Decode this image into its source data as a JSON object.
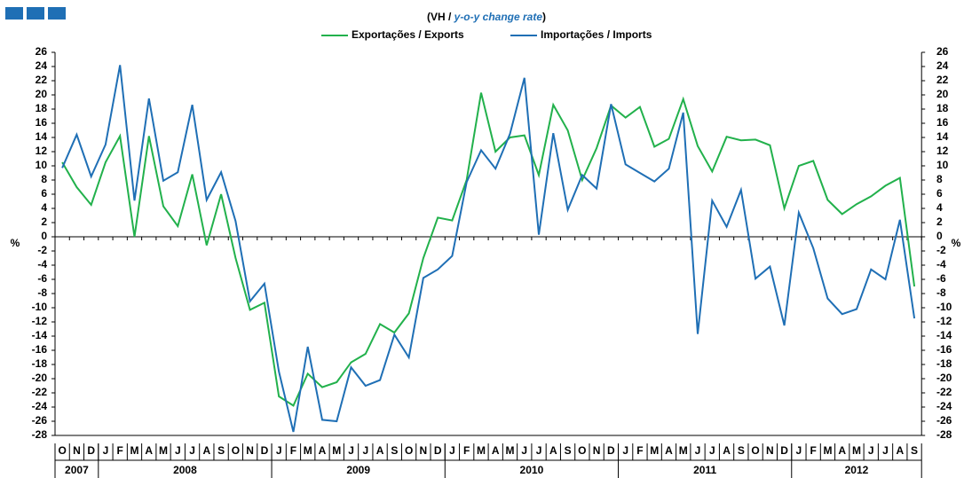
{
  "chart_data": {
    "type": "line",
    "subtitle_parts": [
      "(VH / ",
      "y-o-y change rate",
      ")"
    ],
    "y_label": "%",
    "categories": [
      "O",
      "N",
      "D",
      "J",
      "F",
      "M",
      "A",
      "M",
      "J",
      "J",
      "A",
      "S",
      "O",
      "N",
      "D",
      "J",
      "F",
      "M",
      "A",
      "M",
      "J",
      "J",
      "A",
      "S",
      "O",
      "N",
      "D",
      "J",
      "F",
      "M",
      "A",
      "M",
      "J",
      "J",
      "A",
      "S",
      "O",
      "N",
      "D",
      "J",
      "F",
      "M",
      "A",
      "M",
      "J",
      "J",
      "A",
      "S",
      "O",
      "N",
      "D",
      "J",
      "F",
      "M",
      "A",
      "M",
      "J",
      "J",
      "A",
      "S"
    ],
    "x_groups": [
      {
        "label": "2007",
        "count": 3
      },
      {
        "label": "2008",
        "count": 12
      },
      {
        "label": "2009",
        "count": 12
      },
      {
        "label": "2010",
        "count": 12
      },
      {
        "label": "2011",
        "count": 12
      },
      {
        "label": "2012",
        "count": 9
      }
    ],
    "series": [
      {
        "name": "Exportações / Exports",
        "color": "#22b14c",
        "values": [
          10.5,
          7,
          4.5,
          10.5,
          14.2,
          0,
          14.2,
          4.3,
          1.5,
          8.8,
          -1.2,
          6,
          -3,
          -10.3,
          -9.3,
          -22.5,
          -23.8,
          -19.3,
          -21.2,
          -20.5,
          -17.7,
          -16.5,
          -12.3,
          -13.5,
          -10.8,
          -3,
          2.7,
          2.3,
          8,
          20.3,
          12,
          14,
          14.3,
          8.7,
          18.6,
          15,
          8,
          12.5,
          18.5,
          16.8,
          18.3,
          12.7,
          13.8,
          19.4,
          12.8,
          9.2,
          14.1,
          13.6,
          13.7,
          12.9,
          4,
          10,
          10.7,
          5.2,
          3.2,
          4.6,
          5.7,
          7.2,
          8.3,
          -7
        ]
      },
      {
        "name": "Importações / Imports",
        "color": "#1f6fb5",
        "values": [
          9.7,
          14.4,
          8.5,
          13,
          24.2,
          5.1,
          19.5,
          7.9,
          9.1,
          18.6,
          5.2,
          9.1,
          2.2,
          -9.1,
          -6.6,
          -19,
          -27.5,
          -15.5,
          -25.8,
          -26,
          -18.4,
          -21,
          -20.2,
          -13.8,
          -17,
          -5.8,
          -4.6,
          -2.7,
          7.7,
          12.2,
          9.6,
          14.5,
          22.4,
          0.3,
          14.6,
          3.8,
          8.7,
          6.8,
          18.7,
          10.2,
          9,
          7.8,
          9.6,
          17.5,
          -13.7,
          5.1,
          1.4,
          6.6,
          -5.9,
          -4.2,
          -12.5,
          3.4,
          -1.6,
          -8.7,
          -10.9,
          -10.2,
          -4.6,
          -6,
          2.4,
          -11.5
        ]
      }
    ],
    "ylim": [
      -28,
      26
    ],
    "yticks": [
      -28,
      -26,
      -24,
      -22,
      -20,
      -18,
      -16,
      -14,
      -12,
      -10,
      -8,
      -6,
      -4,
      -2,
      0,
      2,
      4,
      6,
      8,
      10,
      12,
      14,
      16,
      18,
      20,
      22,
      24,
      26
    ]
  }
}
